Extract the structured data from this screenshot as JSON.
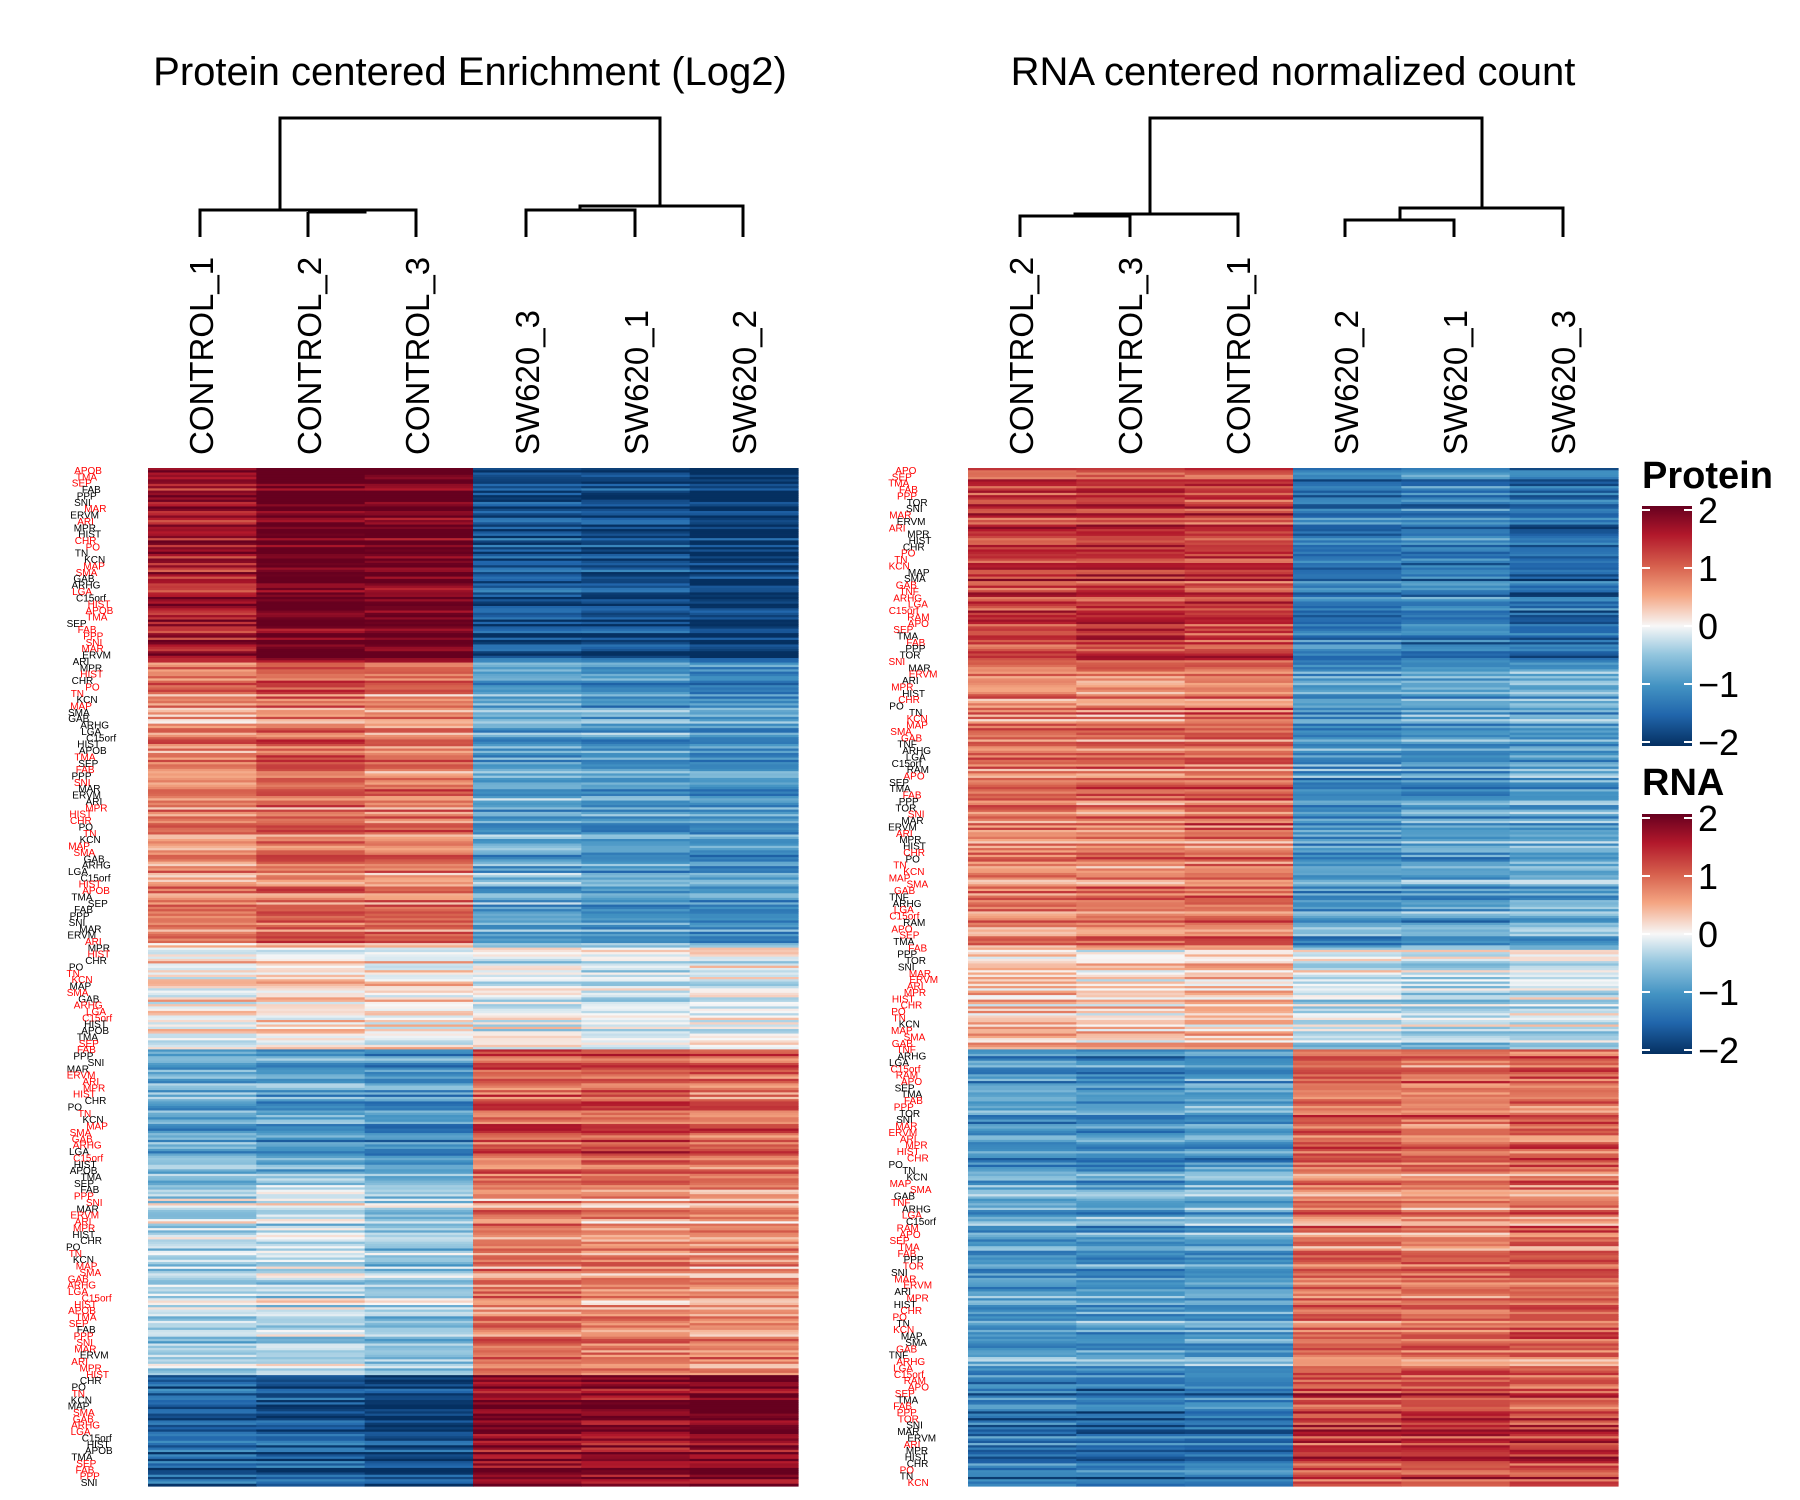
{
  "chart_data": [
    {
      "type": "heatmap",
      "title": "Protein centered Enrichment (Log2)",
      "columns": [
        "CONTROL_1",
        "CONTROL_2",
        "CONTROL_3",
        "SW620_3",
        "SW620_1",
        "SW620_2"
      ],
      "row_count": 450,
      "cluster_blocks": [
        {
          "name": "A",
          "row_fraction": [
            0.0,
            0.19
          ],
          "values": [
            1.6,
            2.1,
            2.0,
            -1.7,
            -1.8,
            -2.0
          ]
        },
        {
          "name": "B",
          "row_fraction": [
            0.19,
            0.47
          ],
          "values": [
            0.7,
            0.9,
            0.8,
            -0.8,
            -0.9,
            -1.0
          ]
        },
        {
          "name": "C",
          "row_fraction": [
            0.47,
            0.57
          ],
          "values": [
            0.1,
            0.2,
            0.1,
            -0.1,
            -0.2,
            -0.1
          ]
        },
        {
          "name": "D",
          "row_fraction": [
            0.57,
            0.69
          ],
          "values": [
            -0.8,
            -0.9,
            -1.0,
            1.0,
            1.1,
            0.9
          ]
        },
        {
          "name": "E",
          "row_fraction": [
            0.69,
            0.89
          ],
          "values": [
            -0.3,
            -0.2,
            -0.4,
            0.7,
            0.6,
            0.6
          ]
        },
        {
          "name": "F",
          "row_fraction": [
            0.89,
            1.0
          ],
          "values": [
            -1.5,
            -1.6,
            -1.8,
            1.8,
            1.7,
            1.9
          ]
        }
      ],
      "row_labels_visible": [
        "APOB",
        "TMA",
        "SEP",
        "FAB",
        "PPP",
        "SNI",
        "MAR",
        "ERVM",
        "ARI",
        "MPR",
        "HIST",
        "CHR",
        "PO",
        "TN",
        "KCN",
        "MAP",
        "SMA",
        "GAB",
        "ARHG",
        "LGA",
        "C15orf",
        "HIST"
      ],
      "color_scale": {
        "min": -2,
        "max": 2,
        "low": "#053061",
        "mid": "#f7f7f7",
        "high": "#67001f"
      }
    },
    {
      "type": "heatmap",
      "title": "RNA centered normalized count",
      "columns": [
        "CONTROL_2",
        "CONTROL_3",
        "CONTROL_1",
        "SW620_2",
        "SW620_1",
        "SW620_3"
      ],
      "row_count": 450,
      "cluster_blocks": [
        {
          "name": "A",
          "row_fraction": [
            0.0,
            0.19
          ],
          "values": [
            1.2,
            1.3,
            1.2,
            -1.3,
            -1.2,
            -1.4
          ]
        },
        {
          "name": "B",
          "row_fraction": [
            0.19,
            0.47
          ],
          "values": [
            0.8,
            0.8,
            0.9,
            -1.0,
            -0.9,
            -0.8
          ]
        },
        {
          "name": "C",
          "row_fraction": [
            0.47,
            0.57
          ],
          "values": [
            0.3,
            0.2,
            0.3,
            -0.2,
            -0.3,
            -0.2
          ]
        },
        {
          "name": "D",
          "row_fraction": [
            0.57,
            0.69
          ],
          "values": [
            -1.0,
            -1.1,
            -1.0,
            1.0,
            0.9,
            1.0
          ]
        },
        {
          "name": "E",
          "row_fraction": [
            0.69,
            0.89
          ],
          "values": [
            -0.9,
            -0.9,
            -0.8,
            0.8,
            0.8,
            0.9
          ]
        },
        {
          "name": "F",
          "row_fraction": [
            0.89,
            1.0
          ],
          "values": [
            -1.3,
            -1.4,
            -1.3,
            1.2,
            1.3,
            1.2
          ]
        }
      ],
      "row_labels_visible": [
        "APO",
        "SEP",
        "TMA",
        "FAB",
        "PPP",
        "TOR",
        "SNI",
        "MAR",
        "ERVM",
        "ARI",
        "MPR",
        "HIST",
        "CHR",
        "PO",
        "TN",
        "KCN",
        "MAP",
        "SMA",
        "GAB",
        "TNF",
        "ARHG",
        "LGA",
        "C15orf",
        "RAM"
      ],
      "color_scale": {
        "min": -2,
        "max": 2,
        "low": "#053061",
        "mid": "#f7f7f7",
        "high": "#67001f"
      }
    }
  ],
  "legends": [
    {
      "title": "Protein",
      "ticks": [
        "2",
        "1",
        "0",
        "−1",
        "−2"
      ]
    },
    {
      "title": "RNA",
      "ticks": [
        "2",
        "1",
        "0",
        "−1",
        "−2"
      ]
    }
  ]
}
